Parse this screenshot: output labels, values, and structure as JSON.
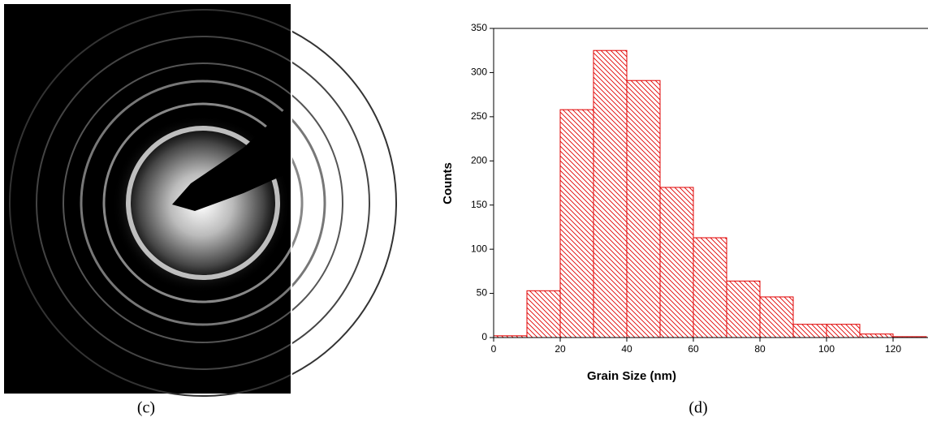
{
  "chart_data": {
    "type": "histogram",
    "xlabel": "Grain Size (nm)",
    "ylabel": "Counts",
    "bins": [
      0,
      10,
      20,
      30,
      40,
      50,
      60,
      70,
      80,
      90,
      100,
      110,
      120,
      130
    ],
    "values": [
      2,
      53,
      258,
      325,
      291,
      170,
      113,
      64,
      46,
      15,
      15,
      4,
      1
    ],
    "color": "#e00000",
    "hatch": true,
    "xlim": [
      0,
      130
    ],
    "xticks": [
      0,
      20,
      40,
      60,
      80,
      100,
      120
    ],
    "ylim": [
      0,
      350
    ],
    "yticks": [
      0,
      50,
      100,
      150,
      200,
      250,
      300,
      350
    ]
  },
  "captions": [
    "(c)",
    "(d)"
  ]
}
